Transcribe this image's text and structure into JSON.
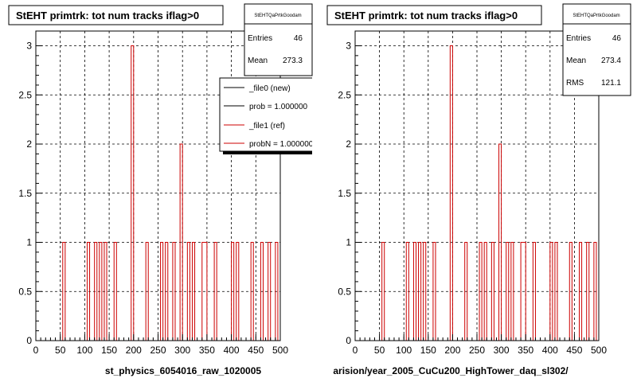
{
  "chart_data": [
    {
      "type": "bar",
      "histtype": "step",
      "title": "StEHT primtrk: tot num tracks iflag>0",
      "xlabel": "st_physics_6054016_raw_1020005",
      "ylabel": "",
      "xlim": [
        0,
        500
      ],
      "ylim": [
        0,
        3.15
      ],
      "xticks": [
        "0",
        "50",
        "100",
        "150",
        "200",
        "250",
        "300",
        "350",
        "400",
        "450",
        "500"
      ],
      "yticks": [
        "0",
        "0.5",
        "1",
        "1.5",
        "2",
        "2.5",
        "3"
      ],
      "grid": true,
      "bin_width": 5,
      "series": [
        {
          "name": "_file1 (ref)",
          "color": "#cc0000",
          "bins": [
            {
              "x": 55,
              "y": 1
            },
            {
              "x": 105,
              "y": 1
            },
            {
              "x": 120,
              "y": 1
            },
            {
              "x": 130,
              "y": 1
            },
            {
              "x": 140,
              "y": 1
            },
            {
              "x": 160,
              "y": 1
            },
            {
              "x": 195,
              "y": 3
            },
            {
              "x": 225,
              "y": 1
            },
            {
              "x": 255,
              "y": 1
            },
            {
              "x": 265,
              "y": 1
            },
            {
              "x": 280,
              "y": 1
            },
            {
              "x": 295,
              "y": 2
            },
            {
              "x": 310,
              "y": 1
            },
            {
              "x": 320,
              "y": 1
            },
            {
              "x": 340,
              "y": 1
            },
            {
              "x": 345,
              "y": 1
            },
            {
              "x": 365,
              "y": 1
            },
            {
              "x": 400,
              "y": 1
            },
            {
              "x": 410,
              "y": 1
            },
            {
              "x": 440,
              "y": 1
            },
            {
              "x": 460,
              "y": 1
            },
            {
              "x": 475,
              "y": 1
            },
            {
              "x": 490,
              "y": 1
            }
          ]
        }
      ],
      "stats": {
        "label": "StEHTQaPrtkGoodam",
        "entries_label": "Entries",
        "entries": "46",
        "mean_label": "Mean",
        "mean": "273.3"
      },
      "legend": {
        "position": "top-right",
        "entries": [
          {
            "label": "_file0 (new)",
            "color": "#000000"
          },
          {
            "label": "prob = 1.000000",
            "color": "#000000"
          },
          {
            "label": "_file1 (ref)",
            "color": "#cc0000"
          },
          {
            "label": "probN = 1.000000",
            "color": "#cc0000"
          }
        ]
      }
    },
    {
      "type": "bar",
      "histtype": "step",
      "title": "StEHT primtrk: tot num tracks iflag>0",
      "xlabel": "arision/year_2005_CuCu200_HighTower_daq_sl302/",
      "ylabel": "",
      "xlim": [
        0,
        500
      ],
      "ylim": [
        0,
        3.15
      ],
      "xticks": [
        "0",
        "50",
        "100",
        "150",
        "200",
        "250",
        "300",
        "350",
        "400",
        "450",
        "500"
      ],
      "yticks": [
        "0",
        "0.5",
        "1",
        "1.5",
        "2",
        "2.5",
        "3"
      ],
      "grid": true,
      "bin_width": 5,
      "series": [
        {
          "name": "",
          "color": "#cc0000",
          "bins": [
            {
              "x": 55,
              "y": 1
            },
            {
              "x": 105,
              "y": 1
            },
            {
              "x": 120,
              "y": 1
            },
            {
              "x": 130,
              "y": 1
            },
            {
              "x": 140,
              "y": 1
            },
            {
              "x": 160,
              "y": 1
            },
            {
              "x": 195,
              "y": 3
            },
            {
              "x": 225,
              "y": 1
            },
            {
              "x": 255,
              "y": 1
            },
            {
              "x": 265,
              "y": 1
            },
            {
              "x": 280,
              "y": 1
            },
            {
              "x": 295,
              "y": 2
            },
            {
              "x": 310,
              "y": 1
            },
            {
              "x": 320,
              "y": 1
            },
            {
              "x": 340,
              "y": 1
            },
            {
              "x": 345,
              "y": 1
            },
            {
              "x": 365,
              "y": 1
            },
            {
              "x": 400,
              "y": 1
            },
            {
              "x": 410,
              "y": 1
            },
            {
              "x": 440,
              "y": 1
            },
            {
              "x": 460,
              "y": 1
            },
            {
              "x": 475,
              "y": 1
            },
            {
              "x": 490,
              "y": 1
            }
          ]
        }
      ],
      "stats": {
        "label": "StEHTQaPrtkGoodam",
        "entries_label": "Entries",
        "entries": "46",
        "mean_label": "Mean",
        "mean": "273.4",
        "rms_label": "RMS",
        "rms": "121.1"
      }
    }
  ]
}
